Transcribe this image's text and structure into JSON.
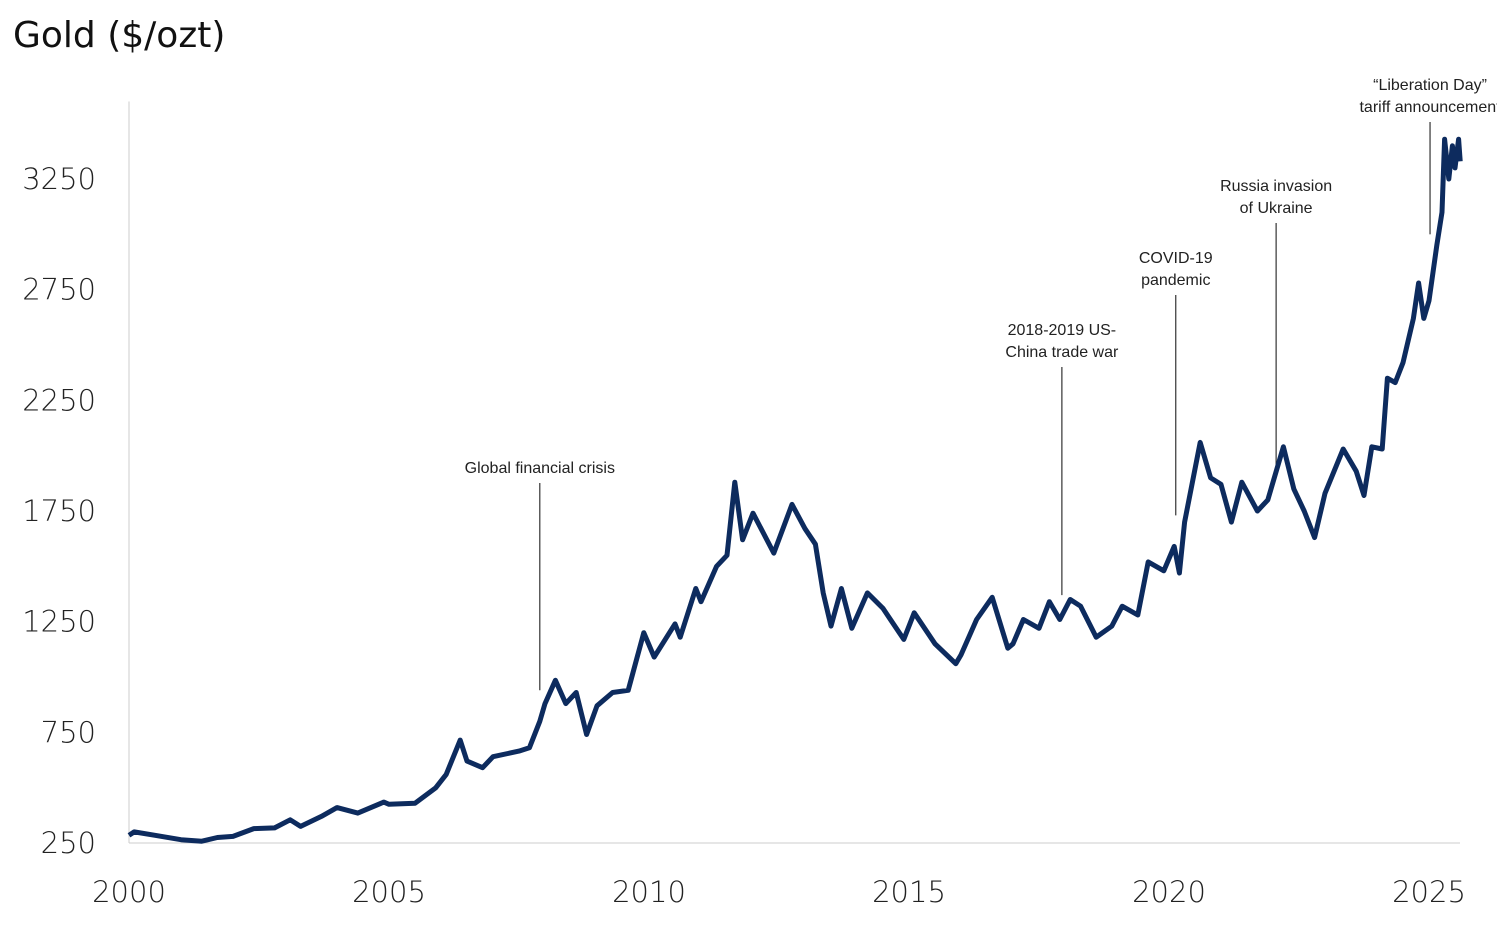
{
  "chart_data": {
    "type": "line",
    "title": "Gold ($/ozt)",
    "xlabel": "",
    "ylabel": "",
    "xlim": [
      2000,
      2025.6
    ],
    "ylim": [
      250,
      3600
    ],
    "x_ticks": [
      2000,
      2005,
      2010,
      2015,
      2020,
      2025
    ],
    "y_ticks": [
      250,
      750,
      1250,
      1750,
      2250,
      2750,
      3250
    ],
    "grid": false,
    "line_color": "#0d2b5e",
    "series": [
      {
        "points": [
          [
            2000.0,
            285
          ],
          [
            2000.1,
            300
          ],
          [
            2000.5,
            285
          ],
          [
            2001.0,
            265
          ],
          [
            2001.4,
            258
          ],
          [
            2001.7,
            275
          ],
          [
            2002.0,
            280
          ],
          [
            2002.4,
            315
          ],
          [
            2002.8,
            318
          ],
          [
            2003.1,
            355
          ],
          [
            2003.3,
            325
          ],
          [
            2003.7,
            370
          ],
          [
            2004.0,
            410
          ],
          [
            2004.4,
            385
          ],
          [
            2004.9,
            435
          ],
          [
            2005.0,
            425
          ],
          [
            2005.5,
            430
          ],
          [
            2005.9,
            500
          ],
          [
            2006.1,
            560
          ],
          [
            2006.37,
            715
          ],
          [
            2006.5,
            620
          ],
          [
            2006.8,
            590
          ],
          [
            2007.0,
            640
          ],
          [
            2007.5,
            665
          ],
          [
            2007.7,
            680
          ],
          [
            2007.9,
            800
          ],
          [
            2008.0,
            880
          ],
          [
            2008.2,
            985
          ],
          [
            2008.4,
            880
          ],
          [
            2008.6,
            930
          ],
          [
            2008.8,
            740
          ],
          [
            2009.0,
            870
          ],
          [
            2009.3,
            930
          ],
          [
            2009.6,
            940
          ],
          [
            2009.9,
            1200
          ],
          [
            2010.1,
            1090
          ],
          [
            2010.5,
            1240
          ],
          [
            2010.6,
            1180
          ],
          [
            2010.9,
            1400
          ],
          [
            2011.0,
            1340
          ],
          [
            2011.3,
            1500
          ],
          [
            2011.5,
            1550
          ],
          [
            2011.65,
            1880
          ],
          [
            2011.8,
            1620
          ],
          [
            2012.0,
            1740
          ],
          [
            2012.4,
            1560
          ],
          [
            2012.75,
            1780
          ],
          [
            2013.0,
            1670
          ],
          [
            2013.2,
            1600
          ],
          [
            2013.35,
            1380
          ],
          [
            2013.5,
            1230
          ],
          [
            2013.7,
            1400
          ],
          [
            2013.9,
            1220
          ],
          [
            2014.2,
            1380
          ],
          [
            2014.5,
            1310
          ],
          [
            2014.9,
            1170
          ],
          [
            2015.1,
            1290
          ],
          [
            2015.5,
            1150
          ],
          [
            2015.9,
            1060
          ],
          [
            2016.0,
            1100
          ],
          [
            2016.3,
            1260
          ],
          [
            2016.6,
            1360
          ],
          [
            2016.9,
            1130
          ],
          [
            2017.0,
            1150
          ],
          [
            2017.2,
            1260
          ],
          [
            2017.5,
            1220
          ],
          [
            2017.7,
            1340
          ],
          [
            2017.9,
            1260
          ],
          [
            2018.1,
            1350
          ],
          [
            2018.3,
            1320
          ],
          [
            2018.6,
            1180
          ],
          [
            2018.9,
            1230
          ],
          [
            2019.1,
            1320
          ],
          [
            2019.4,
            1280
          ],
          [
            2019.6,
            1520
          ],
          [
            2019.9,
            1480
          ],
          [
            2020.1,
            1590
          ],
          [
            2020.2,
            1470
          ],
          [
            2020.3,
            1700
          ],
          [
            2020.6,
            2060
          ],
          [
            2020.8,
            1900
          ],
          [
            2021.0,
            1870
          ],
          [
            2021.2,
            1700
          ],
          [
            2021.4,
            1880
          ],
          [
            2021.7,
            1750
          ],
          [
            2021.9,
            1800
          ],
          [
            2022.2,
            2040
          ],
          [
            2022.4,
            1850
          ],
          [
            2022.6,
            1750
          ],
          [
            2022.8,
            1630
          ],
          [
            2023.0,
            1830
          ],
          [
            2023.35,
            2030
          ],
          [
            2023.6,
            1930
          ],
          [
            2023.75,
            1820
          ],
          [
            2023.9,
            2040
          ],
          [
            2024.1,
            2030
          ],
          [
            2024.2,
            2350
          ],
          [
            2024.35,
            2330
          ],
          [
            2024.5,
            2420
          ],
          [
            2024.7,
            2620
          ],
          [
            2024.8,
            2780
          ],
          [
            2024.9,
            2620
          ],
          [
            2025.0,
            2700
          ],
          [
            2025.15,
            2950
          ],
          [
            2025.25,
            3100
          ],
          [
            2025.3,
            3430
          ],
          [
            2025.38,
            3250
          ],
          [
            2025.45,
            3400
          ],
          [
            2025.5,
            3300
          ],
          [
            2025.57,
            3430
          ],
          [
            2025.6,
            3330
          ]
        ]
      }
    ],
    "annotations": [
      {
        "lines": [
          "Global financial crisis"
        ],
        "x": 2007.9,
        "y": 940
      },
      {
        "lines": [
          "2018-2019 US-",
          "China trade war"
        ],
        "x": 2017.94,
        "y": 1370
      },
      {
        "lines": [
          "COVID-19",
          "pandemic"
        ],
        "x": 2020.13,
        "y": 1730
      },
      {
        "lines": [
          "Russia invasion",
          "of Ukraine"
        ],
        "x": 2022.06,
        "y": 1950
      },
      {
        "lines": [
          "“Liberation Day”",
          "tariff announcement"
        ],
        "x": 2025.02,
        "y": 3000
      }
    ]
  }
}
